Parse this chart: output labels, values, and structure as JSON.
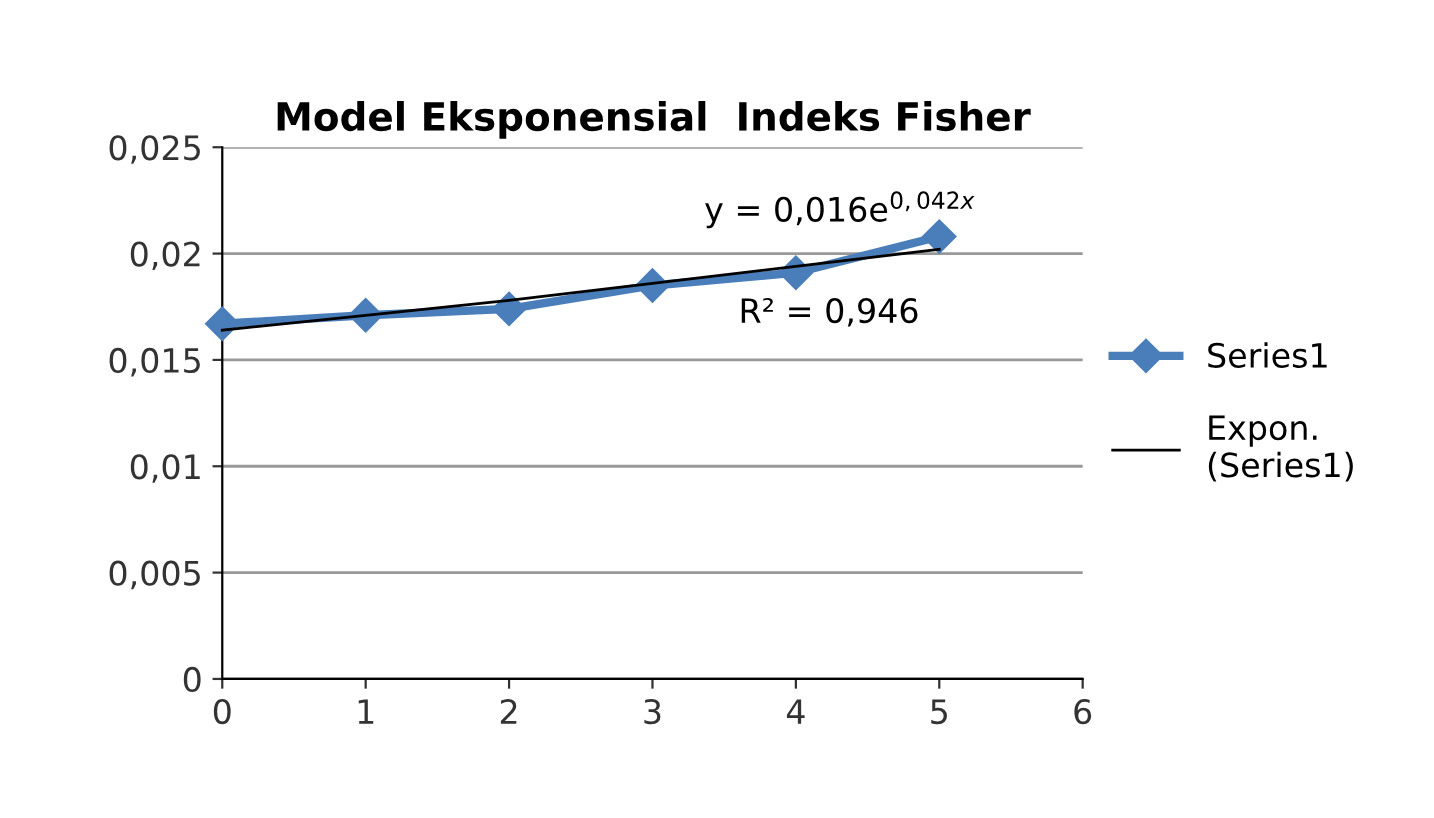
{
  "chart_data": {
    "type": "line",
    "title": "Model Eksponensial  Indeks Fisher",
    "x": [
      0,
      1,
      2,
      3,
      4,
      5
    ],
    "series": [
      {
        "name": "Series1",
        "color": "#4a7ebb",
        "values": [
          0.0167,
          0.0171,
          0.0174,
          0.0185,
          0.0191,
          0.0208
        ],
        "marker": "diamond",
        "line_style": "solid"
      },
      {
        "name": "Expon. (Series1)",
        "color": "#000000",
        "values": [
          0.0164,
          0.0171,
          0.0178,
          0.0186,
          0.0194,
          0.0202
        ],
        "marker": "none",
        "line_style": "solid"
      }
    ],
    "xlim": [
      0,
      6
    ],
    "xticks": [
      0,
      1,
      2,
      3,
      4,
      5,
      6
    ],
    "ylim": [
      0,
      0.025
    ],
    "yticks": [
      0,
      {
        "value": 0.005,
        "label": "0,005"
      },
      {
        "value": 0.01,
        "label": "0,01"
      },
      {
        "value": 0.015,
        "label": "0,015"
      },
      {
        "value": 0.02,
        "label": "0,02"
      },
      {
        "value": 0.025,
        "label": "0,025"
      }
    ],
    "annotations": [
      "y = 0,016e$^{0,042x}$",
      "R² = 0,946"
    ],
    "grid": "y",
    "legend": "right"
  }
}
